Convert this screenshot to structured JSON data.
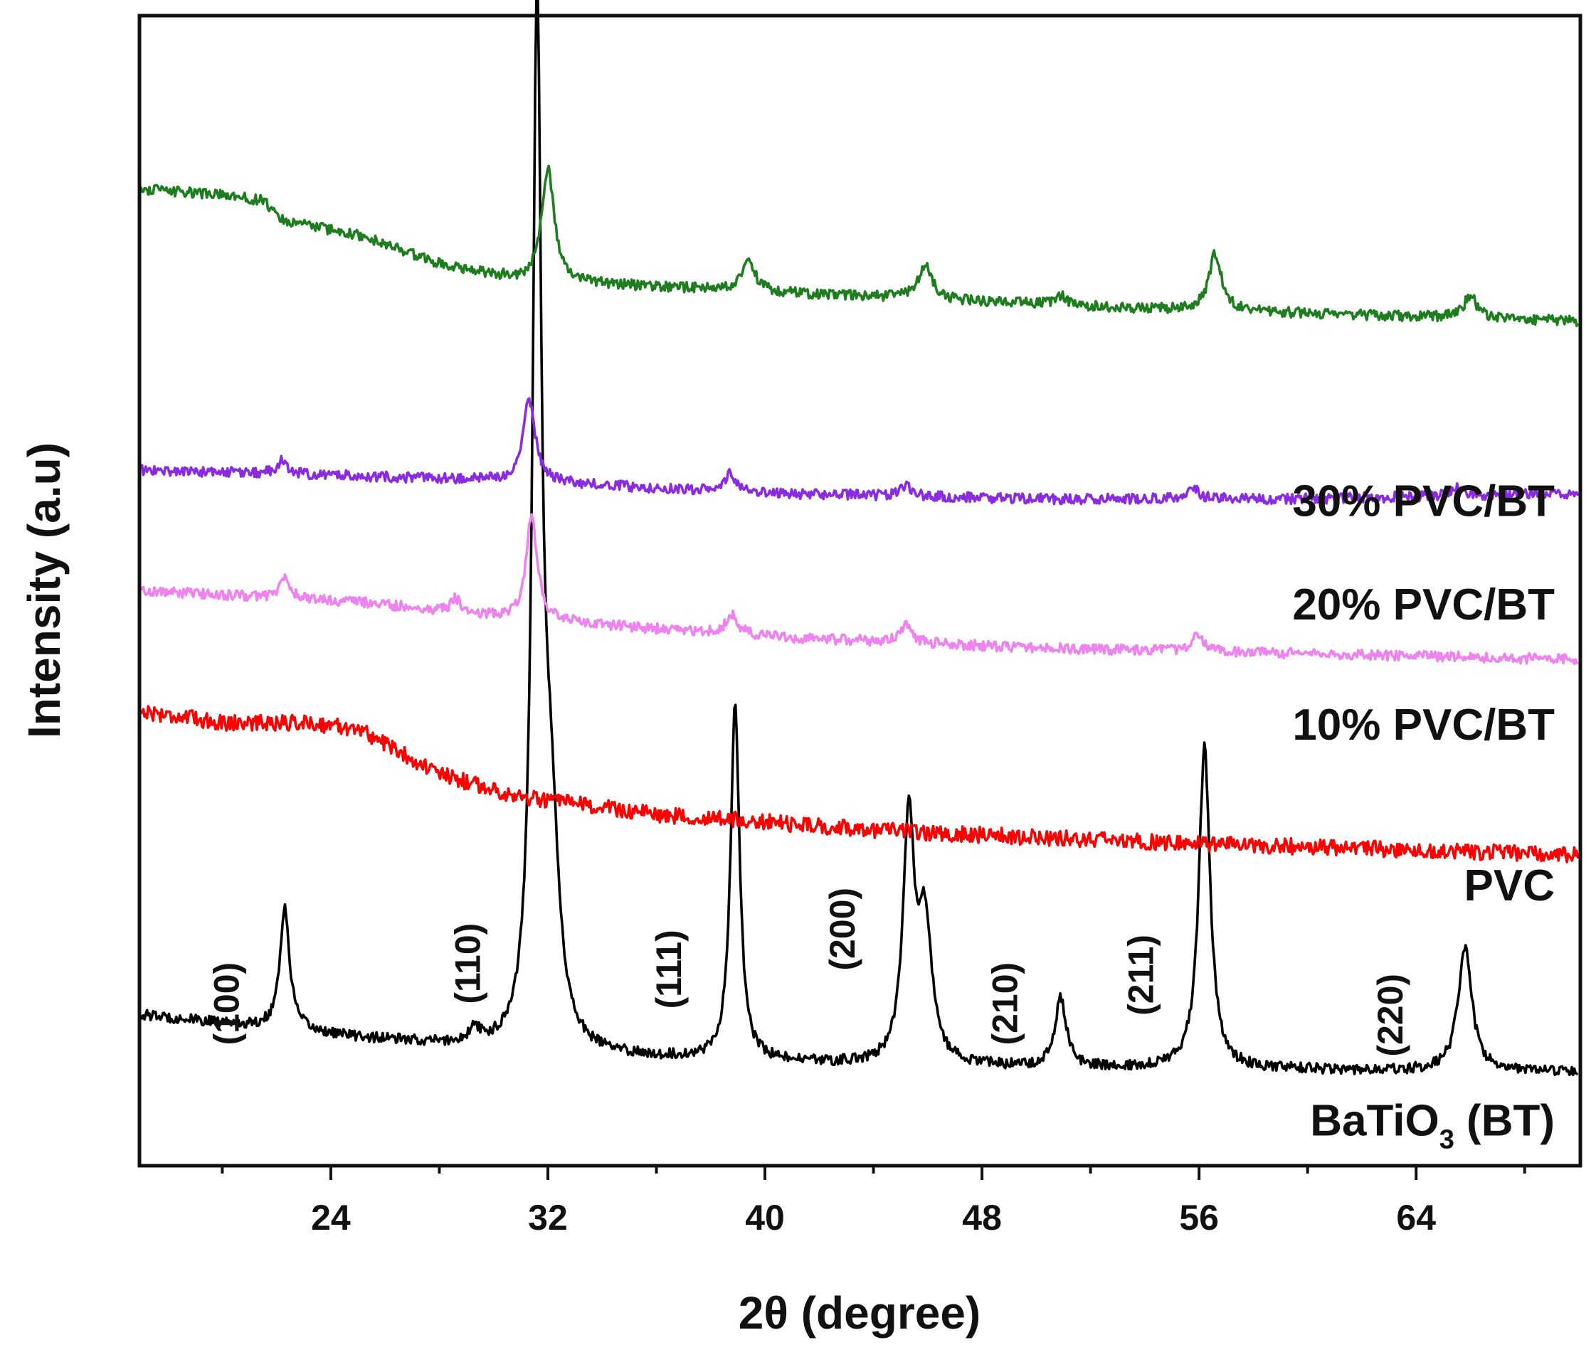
{
  "chart_data": {
    "type": "line",
    "title": "",
    "xlabel": "2θ (degree)",
    "ylabel": "Intensity (a.u)",
    "xlim": [
      17,
      70
    ],
    "ylim": [
      0,
      100
    ],
    "x_ticks": [
      24,
      32,
      40,
      48,
      56,
      64
    ],
    "x_tick_labels": [
      "24",
      "32",
      "40",
      "48",
      "56",
      "64"
    ],
    "minor_x_ticks": [
      20,
      28,
      36,
      44,
      52,
      60,
      68
    ],
    "grid": false,
    "legend": "inline labels at right",
    "series": [
      {
        "name": "BaTiO3 (BT)",
        "label_main": "BaTiO",
        "label_sub": "3",
        "label_tail": " (BT)",
        "color": "#000000",
        "baseline": [
          [
            17,
            13.0
          ],
          [
            25,
            11.0
          ],
          [
            32,
            9.5
          ],
          [
            45,
            8.5
          ],
          [
            56,
            8.3
          ],
          [
            70,
            8.0
          ]
        ],
        "peaks": [
          {
            "x": 22.3,
            "h": 10.5,
            "w": 0.22
          },
          {
            "x": 29.3,
            "h": 1.3,
            "w": 0.2
          },
          {
            "x": 31.6,
            "h": 88.0,
            "w": 0.2
          },
          {
            "x": 32.1,
            "h": 18.0,
            "w": 0.35
          },
          {
            "x": 38.9,
            "h": 31.0,
            "w": 0.2
          },
          {
            "x": 45.3,
            "h": 21.0,
            "w": 0.25
          },
          {
            "x": 45.9,
            "h": 12.0,
            "w": 0.3
          },
          {
            "x": 50.9,
            "h": 6.0,
            "w": 0.25
          },
          {
            "x": 56.2,
            "h": 28.0,
            "w": 0.25
          },
          {
            "x": 65.8,
            "h": 11.0,
            "w": 0.3
          }
        ],
        "noise": 0.45
      },
      {
        "name": "PVC",
        "label": "PVC",
        "color": "#ff0000",
        "baseline": [
          [
            17,
            39.5
          ],
          [
            20,
            38.5
          ],
          [
            23,
            38.5
          ],
          [
            25,
            38.0
          ],
          [
            28,
            34.0
          ],
          [
            31,
            32.0
          ],
          [
            36,
            30.5
          ],
          [
            45,
            29.0
          ],
          [
            55,
            28.0
          ],
          [
            70,
            27.0
          ]
        ],
        "peaks": [],
        "noise": 0.7
      },
      {
        "name": "10% PVC/BT",
        "label": "10% PVC/BT",
        "color": "#ee82ee",
        "baseline": [
          [
            17,
            50.0
          ],
          [
            25,
            49.0
          ],
          [
            31,
            47.5
          ],
          [
            40,
            46.0
          ],
          [
            50,
            45.0
          ],
          [
            60,
            44.5
          ],
          [
            70,
            44.0
          ]
        ],
        "peaks": [
          {
            "x": 22.3,
            "h": 1.8,
            "w": 0.22
          },
          {
            "x": 28.6,
            "h": 1.2,
            "w": 0.2
          },
          {
            "x": 31.4,
            "h": 9.0,
            "w": 0.25
          },
          {
            "x": 38.8,
            "h": 1.8,
            "w": 0.25
          },
          {
            "x": 45.2,
            "h": 1.5,
            "w": 0.25
          },
          {
            "x": 55.9,
            "h": 1.5,
            "w": 0.25
          }
        ],
        "noise": 0.45
      },
      {
        "name": "20% PVC/BT",
        "label": "20% PVC/BT",
        "color": "#8a2be2",
        "baseline": [
          [
            17,
            60.5
          ],
          [
            25,
            60.0
          ],
          [
            31,
            59.5
          ],
          [
            40,
            58.5
          ],
          [
            50,
            58.0
          ],
          [
            60,
            58.0
          ],
          [
            70,
            58.5
          ]
        ],
        "peaks": [
          {
            "x": 22.2,
            "h": 1.2,
            "w": 0.22
          },
          {
            "x": 31.3,
            "h": 7.0,
            "w": 0.28
          },
          {
            "x": 38.7,
            "h": 1.5,
            "w": 0.22
          },
          {
            "x": 45.2,
            "h": 1.0,
            "w": 0.22
          },
          {
            "x": 55.8,
            "h": 1.0,
            "w": 0.22
          },
          {
            "x": 65.5,
            "h": 0.8,
            "w": 0.25
          }
        ],
        "noise": 0.45
      },
      {
        "name": "30% PVC/BT",
        "label": "30% PVC/BT",
        "color": "#1e7d1e",
        "baseline": [
          [
            17,
            85.0
          ],
          [
            20,
            84.5
          ],
          [
            21.5,
            84.0
          ],
          [
            22.3,
            82.2
          ],
          [
            25,
            81.0
          ],
          [
            28,
            78.5
          ],
          [
            31,
            77.0
          ],
          [
            36,
            76.5
          ],
          [
            45,
            75.5
          ],
          [
            55,
            74.5
          ],
          [
            70,
            73.5
          ]
        ],
        "peaks": [
          {
            "x": 32.0,
            "h": 10.0,
            "w": 0.28
          },
          {
            "x": 39.4,
            "h": 3.0,
            "w": 0.25
          },
          {
            "x": 45.9,
            "h": 3.0,
            "w": 0.3
          },
          {
            "x": 50.9,
            "h": 0.8,
            "w": 0.25
          },
          {
            "x": 56.6,
            "h": 5.0,
            "w": 0.28
          },
          {
            "x": 66.0,
            "h": 2.0,
            "w": 0.28
          }
        ],
        "noise": 0.45
      }
    ],
    "peak_labels": [
      {
        "text": "(100)",
        "x": 20.6,
        "y": 14.0
      },
      {
        "text": "(110)",
        "x": 29.5,
        "y": 17.5
      },
      {
        "text": "(111)",
        "x": 36.9,
        "y": 17.0
      },
      {
        "text": "(200)",
        "x": 43.3,
        "y": 20.5
      },
      {
        "text": "(210)",
        "x": 49.3,
        "y": 14.0
      },
      {
        "text": "(211)",
        "x": 54.3,
        "y": 16.5
      },
      {
        "text": "(220)",
        "x": 63.5,
        "y": 13.0
      }
    ]
  }
}
